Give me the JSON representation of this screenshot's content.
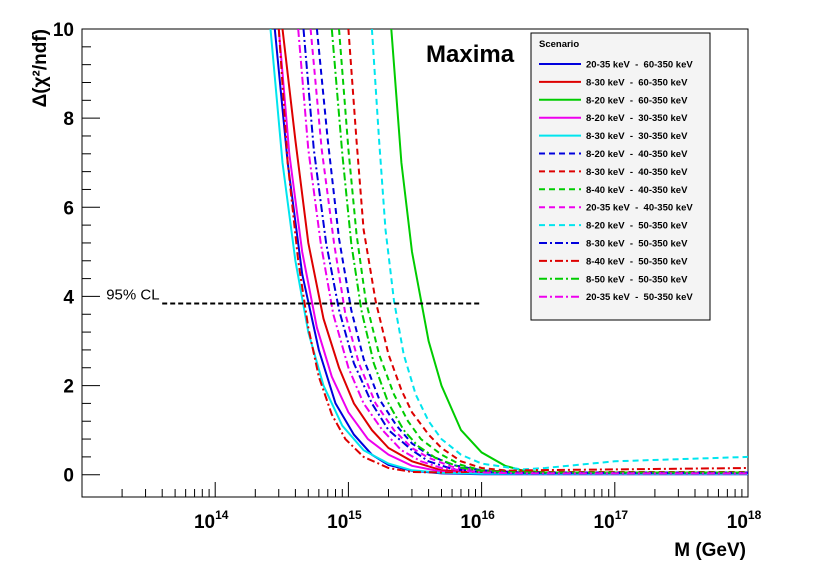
{
  "chart_data": {
    "type": "line",
    "title": "Maxima",
    "xlabel": "M (GeV)",
    "ylabel": "Δ(χ²/ndf)",
    "xscale": "log",
    "xlim": [
      10000000000000.0,
      1e+18
    ],
    "ylim": [
      -0.5,
      10
    ],
    "x_ticks": [
      {
        "base": "10",
        "exp": "14",
        "value": 100000000000000.0
      },
      {
        "base": "10",
        "exp": "15",
        "value": 1000000000000000.0
      },
      {
        "base": "10",
        "exp": "16",
        "value": 1e+16
      },
      {
        "base": "10",
        "exp": "17",
        "value": 1e+17
      },
      {
        "base": "10",
        "exp": "18",
        "value": 1e+18
      }
    ],
    "y_ticks": [
      "0",
      "2",
      "4",
      "6",
      "8",
      "10"
    ],
    "legend_title": "Scenario",
    "legend_position": "top-right",
    "cl_line": {
      "label": "95% CL",
      "y": 3.84,
      "x_start": 40000000000000.0,
      "x_end": 1e+16
    },
    "series": [
      {
        "name": "20-35 keV  -  60-350 keV",
        "color": "#0000dd",
        "dash": "solid",
        "x": [
          280000000000000.0,
          350000000000000.0,
          450000000000000.0,
          600000000000000.0,
          800000000000000.0,
          1100000000000000.0,
          1500000000000000.0,
          2000000000000000.0,
          3000000000000000.0,
          5000000000000000.0,
          1e+16,
          1e+17,
          1e+18
        ],
        "y": [
          10,
          7.0,
          4.5,
          2.8,
          1.6,
          0.9,
          0.45,
          0.22,
          0.09,
          0.03,
          0.01,
          0.01,
          0.01
        ]
      },
      {
        "name": "8-30 keV  -  60-350 keV",
        "color": "#dd0000",
        "dash": "solid",
        "x": [
          320000000000000.0,
          400000000000000.0,
          500000000000000.0,
          650000000000000.0,
          850000000000000.0,
          1100000000000000.0,
          1500000000000000.0,
          2000000000000000.0,
          3000000000000000.0,
          5000000000000000.0,
          1e+16,
          1e+17,
          1e+18
        ],
        "y": [
          10,
          7.5,
          5.2,
          3.5,
          2.4,
          1.6,
          1.0,
          0.6,
          0.3,
          0.1,
          0.04,
          0.02,
          0.02
        ]
      },
      {
        "name": "8-20 keV  -  60-350 keV",
        "color": "#00cc00",
        "dash": "solid",
        "x": [
          2100000000000000.0,
          2500000000000000.0,
          3000000000000000.0,
          4000000000000000.0,
          5000000000000000.0,
          7000000000000000.0,
          1e+16,
          1.5e+16,
          2e+16,
          3e+16,
          1e+17,
          1e+18
        ],
        "y": [
          10,
          7.0,
          5.0,
          3.0,
          2.0,
          1.0,
          0.5,
          0.2,
          0.1,
          0.05,
          0.05,
          0.05
        ]
      },
      {
        "name": "8-20 keV  -  30-350 keV",
        "color": "#ee00ee",
        "dash": "solid",
        "x": [
          300000000000000.0,
          360000000000000.0,
          450000000000000.0,
          580000000000000.0,
          750000000000000.0,
          1000000000000000.0,
          1400000000000000.0,
          2000000000000000.0,
          3000000000000000.0,
          5000000000000000.0,
          1e+16,
          1e+17,
          1e+18
        ],
        "y": [
          10,
          7.2,
          5.0,
          3.3,
          2.2,
          1.4,
          0.8,
          0.45,
          0.2,
          0.07,
          0.03,
          0.02,
          0.02
        ]
      },
      {
        "name": "8-30 keV  -  30-350 keV",
        "color": "#00e5ee",
        "dash": "solid",
        "x": [
          260000000000000.0,
          320000000000000.0,
          400000000000000.0,
          500000000000000.0,
          650000000000000.0,
          900000000000000.0,
          1300000000000000.0,
          2000000000000000.0,
          3000000000000000.0,
          5000000000000000.0,
          1e+16,
          1e+17,
          1e+18
        ],
        "y": [
          10,
          7.0,
          4.8,
          3.2,
          2.0,
          1.1,
          0.55,
          0.25,
          0.1,
          0.04,
          0.02,
          0.02,
          0.02
        ]
      },
      {
        "name": "8-20 keV  -  40-350 keV",
        "color": "#0000dd",
        "dash": "dash",
        "x": [
          580000000000000.0,
          700000000000000.0,
          850000000000000.0,
          1050000000000000.0,
          1300000000000000.0,
          1700000000000000.0,
          2300000000000000.0,
          3000000000000000.0,
          4000000000000000.0,
          6000000000000000.0,
          1e+16,
          2e+16,
          1e+17,
          1e+18
        ],
        "y": [
          10,
          7.5,
          5.3,
          3.7,
          2.6,
          1.7,
          1.1,
          0.7,
          0.45,
          0.22,
          0.1,
          0.05,
          0.05,
          0.05
        ]
      },
      {
        "name": "8-30 keV  -  40-350 keV",
        "color": "#dd0000",
        "dash": "dash",
        "x": [
          1000000000000000.0,
          1150000000000000.0,
          1300000000000000.0,
          1600000000000000.0,
          2000000000000000.0,
          2500000000000000.0,
          3000000000000000.0,
          4000000000000000.0,
          5000000000000000.0,
          7000000000000000.0,
          1e+16,
          2e+16,
          1e+17,
          1e+18
        ],
        "y": [
          10,
          7.5,
          5.5,
          3.9,
          2.7,
          1.9,
          1.4,
          0.9,
          0.6,
          0.3,
          0.15,
          0.06,
          0.06,
          0.06
        ]
      },
      {
        "name": "8-40 keV  -  40-350 keV",
        "color": "#00cc00",
        "dash": "dash",
        "x": [
          850000000000000.0,
          1000000000000000.0,
          1150000000000000.0,
          1350000000000000.0,
          1700000000000000.0,
          2200000000000000.0,
          2800000000000000.0,
          3500000000000000.0,
          5000000000000000.0,
          7000000000000000.0,
          1e+16,
          2e+16,
          1e+17,
          1e+18
        ],
        "y": [
          10,
          7.3,
          5.4,
          3.9,
          2.7,
          1.8,
          1.2,
          0.8,
          0.45,
          0.22,
          0.1,
          0.05,
          0.05,
          0.05
        ]
      },
      {
        "name": "20-35 keV  -  40-350 keV",
        "color": "#ee00ee",
        "dash": "dash",
        "x": [
          520000000000000.0,
          630000000000000.0,
          780000000000000.0,
          950000000000000.0,
          1200000000000000.0,
          1600000000000000.0,
          2200000000000000.0,
          3000000000000000.0,
          4000000000000000.0,
          6000000000000000.0,
          1e+16,
          2e+16,
          1e+17,
          1e+18
        ],
        "y": [
          10,
          7.3,
          5.2,
          3.6,
          2.5,
          1.6,
          1.0,
          0.6,
          0.38,
          0.18,
          0.08,
          0.04,
          0.04,
          0.04
        ]
      },
      {
        "name": "8-20 keV  -  50-350 keV",
        "color": "#00e5ee",
        "dash": "dash",
        "x": [
          1500000000000000.0,
          1700000000000000.0,
          1900000000000000.0,
          2200000000000000.0,
          2600000000000000.0,
          3200000000000000.0,
          4000000000000000.0,
          5000000000000000.0,
          7000000000000000.0,
          1e+16,
          2e+16,
          3e+16,
          1e+17,
          1e+18
        ],
        "y": [
          10,
          7.5,
          5.5,
          3.9,
          2.7,
          1.8,
          1.2,
          0.8,
          0.45,
          0.25,
          0.12,
          0.15,
          0.3,
          0.4
        ]
      },
      {
        "name": "8-30 keV  -  50-350 keV",
        "color": "#0000dd",
        "dash": "dashdot",
        "x": [
          460000000000000.0,
          550000000000000.0,
          680000000000000.0,
          850000000000000.0,
          1100000000000000.0,
          1500000000000000.0,
          2000000000000000.0,
          3000000000000000.0,
          4000000000000000.0,
          6000000000000000.0,
          1e+16,
          2e+16,
          1e+17,
          1e+18
        ],
        "y": [
          10,
          7.3,
          5.2,
          3.7,
          2.5,
          1.6,
          1.0,
          0.55,
          0.3,
          0.13,
          0.06,
          0.04,
          0.04,
          0.04
        ]
      },
      {
        "name": "8-40 keV  -  50-350 keV",
        "color": "#dd0000",
        "dash": "dashdot",
        "x": [
          300000000000000.0,
          350000000000000.0,
          420000000000000.0,
          500000000000000.0,
          600000000000000.0,
          750000000000000.0,
          950000000000000.0,
          1300000000000000.0,
          2000000000000000.0,
          3000000000000000.0,
          5000000000000000.0,
          1e+16,
          2e+16,
          1e+17,
          1e+18
        ],
        "y": [
          10,
          7.0,
          4.8,
          3.3,
          2.2,
          1.35,
          0.8,
          0.4,
          0.15,
          0.06,
          0.05,
          0.07,
          0.1,
          0.12,
          0.15
        ]
      },
      {
        "name": "8-50 keV  -  50-350 keV",
        "color": "#00cc00",
        "dash": "dashdot",
        "x": [
          750000000000000.0,
          900000000000000.0,
          1050000000000000.0,
          1250000000000000.0,
          1550000000000000.0,
          2000000000000000.0,
          2600000000000000.0,
          3300000000000000.0,
          4500000000000000.0,
          7000000000000000.0,
          1e+16,
          2e+16,
          1e+17,
          1e+18
        ],
        "y": [
          10,
          7.2,
          5.2,
          3.7,
          2.5,
          1.6,
          1.0,
          0.65,
          0.38,
          0.16,
          0.08,
          0.05,
          0.05,
          0.05
        ]
      },
      {
        "name": "20-35 keV  -  50-350 keV",
        "color": "#ee00ee",
        "dash": "dashdot",
        "x": [
          420000000000000.0,
          500000000000000.0,
          620000000000000.0,
          770000000000000.0,
          1000000000000000.0,
          1300000000000000.0,
          1800000000000000.0,
          2500000000000000.0,
          3500000000000000.0,
          5000000000000000.0,
          1e+16,
          2e+16,
          1e+17,
          1e+18
        ],
        "y": [
          10,
          7.3,
          5.2,
          3.6,
          2.4,
          1.6,
          1.0,
          0.55,
          0.3,
          0.15,
          0.05,
          0.03,
          0.03,
          0.03
        ]
      }
    ]
  }
}
